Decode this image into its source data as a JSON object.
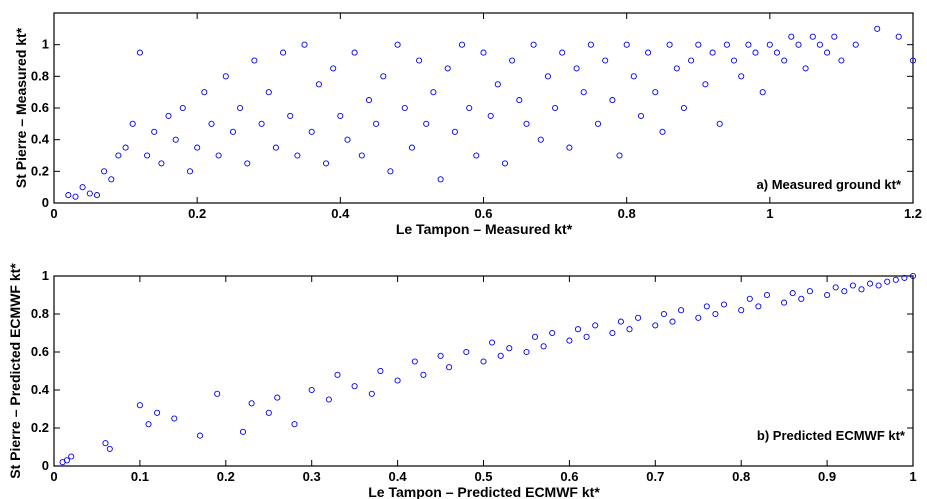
{
  "chart_data": [
    {
      "type": "scatter",
      "title": "",
      "annotation": "a) Measured ground kt*",
      "xlabel": "Le Tampon – Measured kt*",
      "ylabel": "St Pierre – Measured kt*",
      "xlim": [
        0,
        1.2
      ],
      "ylim": [
        0,
        1.2
      ],
      "xticks": [
        "0",
        "0.2",
        "0.4",
        "0.6",
        "0.8",
        "1",
        "1.2"
      ],
      "yticks": [
        "0",
        "0.2",
        "0.4",
        "0.6",
        "0.8",
        "1"
      ],
      "marker_color": "#0000ff",
      "grid": false,
      "series": [
        {
          "x": [
            0.02,
            0.03,
            0.04,
            0.05,
            0.06,
            0.07,
            0.08,
            0.09,
            0.1,
            0.11,
            0.12,
            0.13,
            0.14,
            0.15,
            0.16,
            0.17,
            0.18,
            0.19,
            0.2,
            0.21,
            0.22,
            0.23,
            0.24,
            0.25,
            0.26,
            0.27,
            0.28,
            0.29,
            0.3,
            0.31,
            0.32,
            0.33,
            0.34,
            0.35,
            0.36,
            0.37,
            0.38,
            0.39,
            0.4,
            0.41,
            0.42,
            0.43,
            0.44,
            0.45,
            0.46,
            0.47,
            0.48,
            0.49,
            0.5,
            0.51,
            0.52,
            0.53,
            0.54,
            0.55,
            0.56,
            0.57,
            0.58,
            0.59,
            0.6,
            0.61,
            0.62,
            0.63,
            0.64,
            0.65,
            0.66,
            0.67,
            0.68,
            0.69,
            0.7,
            0.71,
            0.72,
            0.73,
            0.74,
            0.75,
            0.76,
            0.77,
            0.78,
            0.79,
            0.8,
            0.81,
            0.82,
            0.83,
            0.84,
            0.85,
            0.86,
            0.87,
            0.88,
            0.89,
            0.9,
            0.91,
            0.92,
            0.93,
            0.94,
            0.95,
            0.96,
            0.97,
            0.98,
            0.99,
            1.0,
            1.01,
            1.02,
            1.03,
            1.04,
            1.05,
            1.06,
            1.07,
            1.08,
            1.09,
            1.1,
            1.12,
            1.15,
            1.18,
            1.2
          ],
          "y": [
            0.05,
            0.04,
            0.1,
            0.06,
            0.05,
            0.2,
            0.15,
            0.3,
            0.35,
            0.5,
            0.95,
            0.3,
            0.45,
            0.25,
            0.55,
            0.4,
            0.6,
            0.2,
            0.35,
            0.7,
            0.5,
            0.3,
            0.8,
            0.45,
            0.6,
            0.25,
            0.9,
            0.5,
            0.7,
            0.35,
            0.95,
            0.55,
            0.3,
            1.0,
            0.45,
            0.75,
            0.25,
            0.85,
            0.55,
            0.4,
            0.95,
            0.3,
            0.65,
            0.5,
            0.8,
            0.2,
            1.0,
            0.6,
            0.35,
            0.9,
            0.5,
            0.7,
            0.15,
            0.85,
            0.45,
            1.0,
            0.6,
            0.3,
            0.95,
            0.55,
            0.75,
            0.25,
            0.9,
            0.65,
            0.5,
            1.0,
            0.4,
            0.8,
            0.6,
            0.95,
            0.35,
            0.85,
            0.7,
            1.0,
            0.5,
            0.9,
            0.65,
            0.3,
            1.0,
            0.8,
            0.55,
            0.95,
            0.7,
            0.45,
            1.0,
            0.85,
            0.6,
            0.9,
            1.0,
            0.75,
            0.95,
            0.5,
            1.0,
            0.9,
            0.8,
            1.0,
            0.95,
            0.7,
            1.0,
            0.95,
            0.9,
            1.05,
            1.0,
            0.85,
            1.05,
            1.0,
            0.95,
            1.05,
            0.9,
            1.0,
            1.1,
            1.05,
            0.9
          ]
        }
      ]
    },
    {
      "type": "scatter",
      "title": "",
      "annotation": "b) Predicted ECMWF kt*",
      "xlabel": "Le Tampon – Predicted ECMWF kt*",
      "ylabel": "St Pierre – Predicted ECMWF kt*",
      "xlim": [
        0,
        1
      ],
      "ylim": [
        0,
        1
      ],
      "xticks": [
        "0",
        "0.1",
        "0.2",
        "0.3",
        "0.4",
        "0.5",
        "0.6",
        "0.7",
        "0.8",
        "0.9",
        "1"
      ],
      "yticks": [
        "0",
        "0.2",
        "0.4",
        "0.6",
        "0.8",
        "1"
      ],
      "marker_color": "#0000ff",
      "grid": false,
      "series": [
        {
          "x": [
            0.01,
            0.015,
            0.02,
            0.06,
            0.065,
            0.1,
            0.11,
            0.12,
            0.14,
            0.17,
            0.19,
            0.22,
            0.23,
            0.25,
            0.26,
            0.28,
            0.3,
            0.32,
            0.33,
            0.35,
            0.37,
            0.38,
            0.4,
            0.42,
            0.43,
            0.45,
            0.46,
            0.48,
            0.5,
            0.51,
            0.52,
            0.53,
            0.55,
            0.56,
            0.57,
            0.58,
            0.6,
            0.61,
            0.62,
            0.63,
            0.65,
            0.66,
            0.67,
            0.68,
            0.7,
            0.71,
            0.72,
            0.73,
            0.75,
            0.76,
            0.77,
            0.78,
            0.8,
            0.81,
            0.82,
            0.83,
            0.85,
            0.86,
            0.87,
            0.88,
            0.9,
            0.91,
            0.92,
            0.93,
            0.94,
            0.95,
            0.96,
            0.97,
            0.98,
            0.99,
            1.0
          ],
          "y": [
            0.02,
            0.03,
            0.05,
            0.12,
            0.09,
            0.32,
            0.22,
            0.28,
            0.25,
            0.16,
            0.38,
            0.18,
            0.33,
            0.28,
            0.36,
            0.22,
            0.4,
            0.35,
            0.48,
            0.42,
            0.38,
            0.5,
            0.45,
            0.55,
            0.48,
            0.58,
            0.52,
            0.6,
            0.55,
            0.65,
            0.58,
            0.62,
            0.6,
            0.68,
            0.63,
            0.7,
            0.66,
            0.72,
            0.68,
            0.74,
            0.7,
            0.76,
            0.72,
            0.78,
            0.74,
            0.8,
            0.76,
            0.82,
            0.78,
            0.84,
            0.8,
            0.85,
            0.82,
            0.88,
            0.84,
            0.9,
            0.86,
            0.91,
            0.88,
            0.92,
            0.9,
            0.94,
            0.92,
            0.95,
            0.93,
            0.96,
            0.95,
            0.97,
            0.98,
            0.99,
            1.0
          ]
        }
      ]
    }
  ]
}
